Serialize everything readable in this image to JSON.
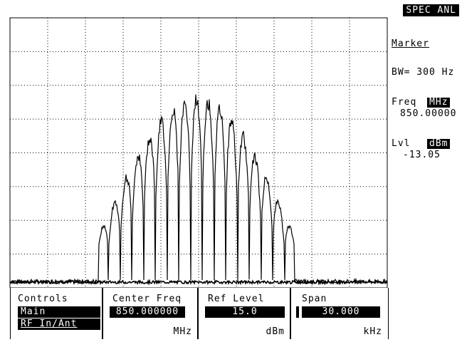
{
  "screen": {
    "mode": "SPEC ANL"
  },
  "marker": {
    "title": "Marker",
    "bandwidth": "BW= 300 Hz",
    "freq_label": "Freq",
    "freq_unit": "MHz",
    "freq_value": "850.00000",
    "level_label": "Lvl",
    "level_unit": "dBm",
    "level_value": "-13.05"
  },
  "controls": {
    "label": "Controls",
    "items": [
      "Main",
      "RF In/Ant"
    ]
  },
  "center_freq": {
    "label": "Center Freq",
    "value": "850.000000",
    "unit": "MHz"
  },
  "ref_level": {
    "label": "Ref Level",
    "value": "15.0",
    "unit": "dBm"
  },
  "span": {
    "label": "Span",
    "value": "30.000",
    "unit": "kHz"
  },
  "colors": {
    "foreground": "#000000",
    "background": "#ffffff"
  }
}
